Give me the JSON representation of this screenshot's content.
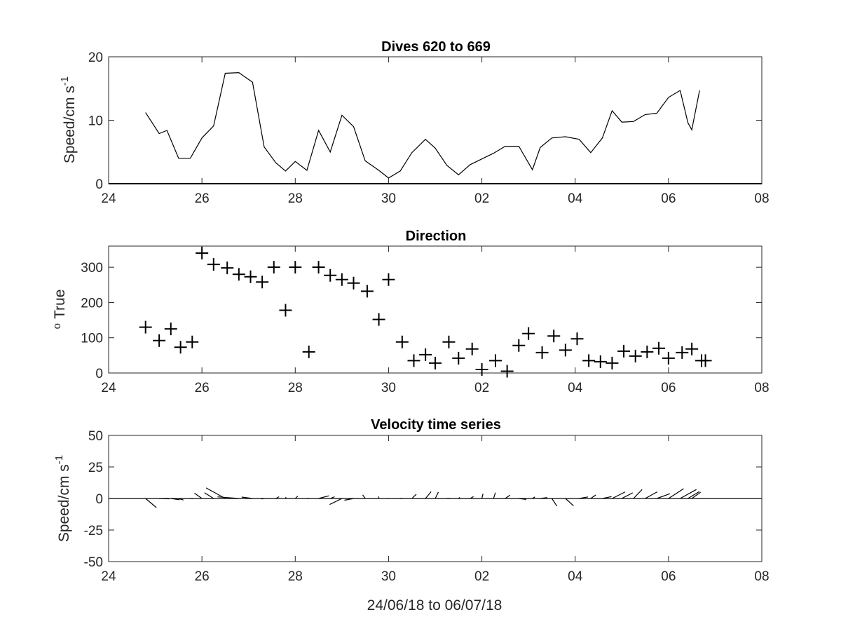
{
  "chart_data": [
    {
      "type": "line",
      "title": "Dives 620 to 669",
      "ylabel": "Speed/cm s",
      "ylabel_sup": "-1",
      "xlabel": "",
      "x_tick_labels": [
        "24",
        "26",
        "28",
        "30",
        "02",
        "04",
        "06",
        "08"
      ],
      "xlim": [
        "2018-06-24",
        "2018-07-08"
      ],
      "ylim": [
        0,
        20
      ],
      "y_ticks": [
        0,
        10,
        20
      ],
      "x": [
        "2018-06-24T19:00",
        "2018-06-25T02:00",
        "2018-06-25T06:00",
        "2018-06-25T12:00",
        "2018-06-25T18:00",
        "2018-06-26T00:00",
        "2018-06-26T06:00",
        "2018-06-26T12:00",
        "2018-06-26T19:00",
        "2018-06-27T02:00",
        "2018-06-27T08:00",
        "2018-06-27T14:00",
        "2018-06-27T19:00",
        "2018-06-28T00:00",
        "2018-06-28T06:00",
        "2018-06-28T12:00",
        "2018-06-28T18:00",
        "2018-06-29T00:00",
        "2018-06-29T06:00",
        "2018-06-29T12:00",
        "2018-06-29T19:00",
        "2018-06-30T00:00",
        "2018-06-30T06:00",
        "2018-06-30T12:00",
        "2018-06-30T19:00",
        "2018-07-01T00:00",
        "2018-07-01T06:00",
        "2018-07-01T12:00",
        "2018-07-01T18:00",
        "2018-07-02T00:00",
        "2018-07-02T06:00",
        "2018-07-02T12:00",
        "2018-07-02T19:00",
        "2018-07-03T02:00",
        "2018-07-03T06:00",
        "2018-07-03T12:00",
        "2018-07-03T19:00",
        "2018-07-04T02:00",
        "2018-07-04T08:00",
        "2018-07-04T14:00",
        "2018-07-04T19:00",
        "2018-07-05T00:00",
        "2018-07-05T06:00",
        "2018-07-05T12:00",
        "2018-07-05T18:00",
        "2018-07-06T00:00",
        "2018-07-06T06:00",
        "2018-07-06T10:00",
        "2018-07-06T12:00"
      ],
      "series": [
        {
          "values": [
            11.2,
            7.9,
            8.4,
            4.0,
            4.0,
            7.2,
            9.1,
            17.4,
            17.5,
            16.0,
            5.8,
            3.3,
            2.0,
            3.5,
            2.1,
            8.4,
            5.0,
            10.8,
            9.0,
            3.6,
            2.1,
            0.9,
            2.0,
            4.9,
            7.0,
            5.6,
            2.9,
            1.4,
            3.0,
            3.9,
            4.8,
            5.9,
            5.9,
            2.2,
            5.7,
            7.2,
            7.4,
            7.0,
            4.9,
            7.2,
            11.5,
            9.7,
            9.8,
            10.9,
            11.1,
            13.6,
            14.7,
            9.6,
            8.5
          ]
        }
      ],
      "line_end": [
        "2018-07-06T16:00",
        14.7
      ]
    },
    {
      "type": "scatter",
      "title": "Direction",
      "ylabel": "True",
      "ylabel_sup": "o",
      "xlabel": "",
      "x_tick_labels": [
        "24",
        "26",
        "28",
        "30",
        "02",
        "04",
        "06",
        "08"
      ],
      "xlim": [
        "2018-06-24",
        "2018-07-08"
      ],
      "ylim": [
        0,
        360
      ],
      "y_ticks": [
        0,
        100,
        200,
        300
      ],
      "marker": "+",
      "x": [
        "2018-06-24T19:00",
        "2018-06-25T02:00",
        "2018-06-25T08:00",
        "2018-06-25T13:00",
        "2018-06-25T19:00",
        "2018-06-26T00:00",
        "2018-06-26T06:00",
        "2018-06-26T13:00",
        "2018-06-26T19:00",
        "2018-06-27T01:00",
        "2018-06-27T07:00",
        "2018-06-27T13:00",
        "2018-06-27T19:00",
        "2018-06-28T00:00",
        "2018-06-28T07:00",
        "2018-06-28T12:00",
        "2018-06-28T18:00",
        "2018-06-29T00:00",
        "2018-06-29T06:00",
        "2018-06-29T13:00",
        "2018-06-29T19:00",
        "2018-06-30T00:00",
        "2018-06-30T07:00",
        "2018-06-30T13:00",
        "2018-06-30T19:00",
        "2018-07-01T00:00",
        "2018-07-01T07:00",
        "2018-07-01T12:00",
        "2018-07-01T19:00",
        "2018-07-02T00:00",
        "2018-07-02T07:00",
        "2018-07-02T13:00",
        "2018-07-02T19:00",
        "2018-07-03T00:00",
        "2018-07-03T07:00",
        "2018-07-03T13:00",
        "2018-07-03T19:00",
        "2018-07-04T01:00",
        "2018-07-04T07:00",
        "2018-07-04T13:00",
        "2018-07-04T19:00",
        "2018-07-05T01:00",
        "2018-07-05T07:00",
        "2018-07-05T13:00",
        "2018-07-05T19:00",
        "2018-07-06T00:00",
        "2018-07-06T07:00",
        "2018-07-06T12:00",
        "2018-07-06T17:00"
      ],
      "series": [
        {
          "values": [
            130,
            92,
            125,
            73,
            88,
            340,
            308,
            298,
            280,
            273,
            258,
            300,
            178,
            300,
            60,
            300,
            277,
            265,
            255,
            232,
            152,
            265,
            88,
            35,
            52,
            28,
            88,
            42,
            68,
            10,
            35,
            5,
            78,
            112,
            58,
            105,
            65,
            97,
            35,
            32,
            28,
            62,
            48,
            60,
            70,
            42,
            58,
            68,
            35
          ]
        }
      ],
      "extra_points": [
        [
          "2018-07-06T19:00",
          35
        ]
      ]
    },
    {
      "type": "line",
      "subtype": "stick_plot",
      "title": "Velocity time series",
      "ylabel": "Speed/cm s",
      "ylabel_sup": "-1",
      "xlabel": "24/06/18 to 06/07/18",
      "x_tick_labels": [
        "24",
        "26",
        "28",
        "30",
        "02",
        "04",
        "06",
        "08"
      ],
      "xlim": [
        "2018-06-24",
        "2018-07-08"
      ],
      "ylim": [
        -50,
        50
      ],
      "y_ticks": [
        -50,
        -25,
        0,
        25,
        50
      ],
      "note_units": "each stick: start at (time, 0), components [east, north] in cm s-1",
      "x": [
        "2018-06-24T19:00",
        "2018-06-25T02:00",
        "2018-06-25T08:00",
        "2018-06-25T12:00",
        "2018-06-25T18:00",
        "2018-06-26T00:00",
        "2018-06-26T06:00",
        "2018-06-26T12:00",
        "2018-06-26T19:00",
        "2018-06-27T02:00",
        "2018-06-27T08:00",
        "2018-06-27T14:00",
        "2018-06-27T19:00",
        "2018-06-28T00:00",
        "2018-06-28T06:00",
        "2018-06-28T12:00",
        "2018-06-28T18:00",
        "2018-06-29T00:00",
        "2018-06-29T06:00",
        "2018-06-29T12:00",
        "2018-06-29T19:00",
        "2018-06-30T00:00",
        "2018-06-30T06:00",
        "2018-06-30T12:00",
        "2018-06-30T19:00",
        "2018-07-01T00:00",
        "2018-07-01T06:00",
        "2018-07-01T12:00",
        "2018-07-01T18:00",
        "2018-07-02T00:00",
        "2018-07-02T06:00",
        "2018-07-02T12:00",
        "2018-07-02T19:00",
        "2018-07-03T02:00",
        "2018-07-03T06:00",
        "2018-07-03T12:00",
        "2018-07-03T19:00",
        "2018-07-04T02:00",
        "2018-07-04T08:00",
        "2018-07-04T14:00",
        "2018-07-04T19:00",
        "2018-07-05T00:00",
        "2018-07-05T06:00",
        "2018-07-05T12:00",
        "2018-07-05T18:00",
        "2018-07-06T00:00",
        "2018-07-06T06:00",
        "2018-07-06T10:00",
        "2018-07-06T12:00"
      ],
      "series": [
        {
          "name": "",
          "values": [
            [
              8.6,
              -7.2
            ],
            [
              7.9,
              -0.3
            ],
            [
              7.0,
              -1.0
            ],
            [
              3.8,
              -1.2
            ],
            [
              2.2,
              -0.1
            ],
            [
              -5.9,
              4.2
            ],
            [
              -7.2,
              4.6
            ],
            [
              -15.2,
              8.4
            ],
            [
              -16.9,
              1.3
            ],
            [
              -8.6,
              1.1
            ],
            [
              -2.3,
              -0.4
            ],
            [
              2.6,
              1.4
            ],
            [
              0.4,
              1.1
            ],
            [
              2.0,
              1.9
            ],
            [
              1.8,
              0.1
            ],
            [
              8.1,
              2.1
            ],
            [
              3.5,
              1.4
            ],
            [
              -9.7,
              -4.8
            ],
            [
              -7.2,
              -1.4
            ],
            [
              -2.0,
              2.9
            ],
            [
              -0.1,
              1.6
            ],
            [
              -0.9,
              -0.1
            ],
            [
              2.0,
              0.1
            ],
            [
              3.5,
              3.4
            ],
            [
              4.5,
              5.4
            ],
            [
              2.5,
              5.1
            ],
            [
              2.9,
              0.1
            ],
            [
              1.0,
              0.9
            ],
            [
              2.6,
              1.5
            ],
            [
              0.9,
              3.8
            ],
            [
              1.5,
              4.6
            ],
            [
              3.8,
              2.6
            ],
            [
              5.9,
              -0.8
            ],
            [
              2.0,
              1.2
            ],
            [
              5.6,
              0.7
            ],
            [
              4.0,
              -6.0
            ],
            [
              6.4,
              -5.8
            ],
            [
              7.0,
              1.2
            ],
            [
              4.0,
              2.8
            ],
            [
              7.2,
              1.5
            ],
            [
              10.3,
              5.2
            ],
            [
              8.6,
              4.5
            ],
            [
              6.8,
              7.1
            ],
            [
              9.6,
              5.3
            ],
            [
              10.4,
              3.8
            ],
            [
              12.0,
              7.8
            ],
            [
              12.9,
              7.1
            ],
            [
              9.0,
              5.5
            ],
            [
              7.0,
              5.0
            ]
          ]
        }
      ]
    }
  ]
}
